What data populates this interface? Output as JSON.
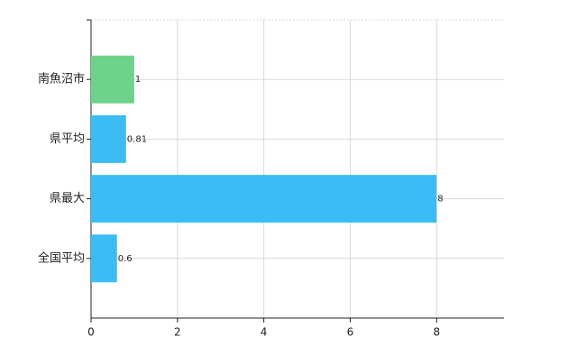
{
  "chart_data": {
    "type": "bar",
    "orientation": "horizontal",
    "categories": [
      "南魚沼市",
      "県平均",
      "県最大",
      "全国平均"
    ],
    "values": [
      1,
      0.81,
      8,
      0.6
    ],
    "colors": [
      "#6dd38a",
      "#3bbcf5",
      "#3bbcf5",
      "#3bbcf5"
    ],
    "xlim": [
      0,
      9.56
    ],
    "xticks": [
      0,
      2,
      4,
      6,
      8
    ],
    "grid": true
  }
}
